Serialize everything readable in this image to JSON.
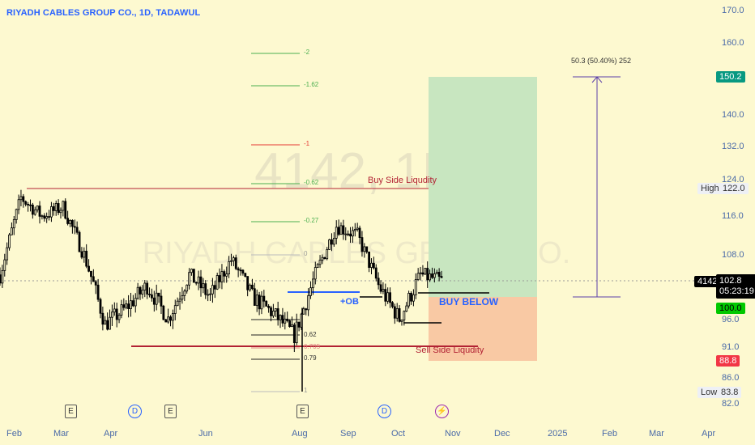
{
  "header": {
    "title": "RIYADH CABLES GROUP CO., 1D, TADAWUL"
  },
  "watermark": {
    "ticker": "4142, 1D",
    "name": "RIYADH CABLES GROUP CO."
  },
  "price_axis": {
    "ticks": [
      "170.0",
      "160.0",
      "150.2",
      "140.0",
      "132.0",
      "124.0",
      "116.0",
      "108.0",
      "102.8",
      "96.0",
      "91.0",
      "88.8",
      "86.0",
      "82.0"
    ],
    "high_label": "High",
    "high_value": "122.0",
    "low_label": "Low",
    "low_value": "83.8",
    "tp_value": "150.2",
    "current_symbol": "4142",
    "current_price": "102.8",
    "countdown": "05:23:19",
    "entry_value": "100.0",
    "stop_value": "88.8"
  },
  "time_axis": {
    "labels": [
      "Feb",
      "Mar",
      "Apr",
      "Jun",
      "Aug",
      "Sep",
      "Oct",
      "Nov",
      "Dec",
      "2025",
      "Feb",
      "Mar",
      "Apr"
    ]
  },
  "annotations": {
    "buy_side": "Buy Side Liqudity",
    "sell_side": "Sell Side Liqudity",
    "ob": "+OB",
    "buy_below": "BUY BELOW",
    "measure": "50.3 (50.40%) 252"
  },
  "fib_levels": [
    "-2",
    "-1.62",
    "-1",
    "-0.62",
    "-0.27",
    "0",
    "0.62",
    "0.705",
    "0.79",
    "1"
  ],
  "events": [
    "E",
    "D",
    "E",
    "E",
    "D"
  ],
  "colors": {
    "background": "#fdf9d0",
    "candle": "#000000",
    "target_zone": "#c8e6c0",
    "stop_zone": "#f9c9a4",
    "liquidity_line": "#b22234",
    "ob_line": "#2962ff",
    "fib_green": "#4caf50",
    "fib_red": "#e53935",
    "tp_badge": "#089981",
    "stop_badge": "#f23645",
    "entry_badge": "#00c800",
    "measure_line": "#5b3fa8"
  },
  "chart_data": {
    "type": "candlestick",
    "title": "RIYADH CABLES GROUP CO., 1D, TADAWUL",
    "y_axis_ticks": [
      170.0,
      160.0,
      140.0,
      132.0,
      124.0,
      116.0,
      108.0,
      96.0,
      91.0,
      86.0,
      82.0
    ],
    "x_axis_labels": [
      "Feb",
      "Mar",
      "Apr",
      "Jun",
      "Aug",
      "Sep",
      "Oct",
      "Nov",
      "Dec",
      "2025",
      "Feb",
      "Mar",
      "Apr"
    ],
    "approx_close_path": [
      [
        "Jan",
        104
      ],
      [
        "Feb",
        120
      ],
      [
        "Feb",
        116
      ],
      [
        "Mar",
        118
      ],
      [
        "Mar",
        108
      ],
      [
        "Apr",
        95
      ],
      [
        "Apr",
        98
      ],
      [
        "May",
        102
      ],
      [
        "May",
        96
      ],
      [
        "Jun",
        104
      ],
      [
        "Jun",
        100
      ],
      [
        "Jul",
        107
      ],
      [
        "Jul",
        100
      ],
      [
        "Aug",
        97
      ],
      [
        "Aug",
        93
      ],
      [
        "Aug",
        104
      ],
      [
        "Sep",
        114
      ],
      [
        "Sep",
        112
      ],
      [
        "Sep",
        102
      ],
      [
        "Oct",
        96
      ],
      [
        "Oct",
        104
      ],
      [
        "Oct",
        102.8
      ]
    ],
    "levels": {
      "high": 122.0,
      "low": 83.8,
      "current": 102.8,
      "entry": 100.0,
      "take_profit": 150.2,
      "stop": 88.8,
      "buy_side_liquidity": 122.0,
      "sell_side_liquidity": 91.0
    },
    "ylim": [
      81,
      172
    ]
  }
}
